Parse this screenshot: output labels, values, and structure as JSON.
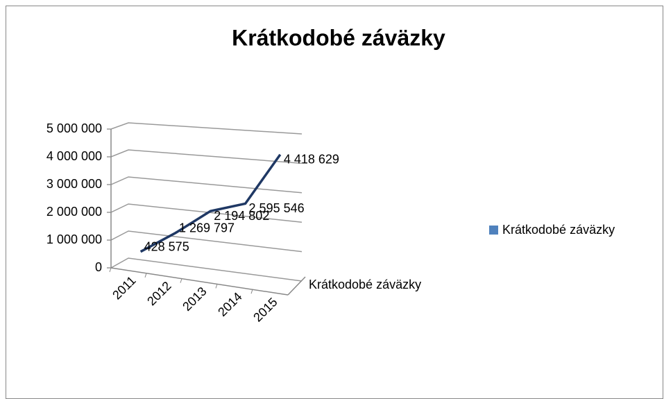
{
  "chart_data": {
    "type": "line",
    "title": "Krátkodobé záväzky",
    "categories": [
      "2011",
      "2012",
      "2013",
      "2014",
      "2015"
    ],
    "series": [
      {
        "name": "Krátkodobé záväzky",
        "color": "#1f3864",
        "values": [
          428575,
          1269797,
          2194802,
          2595546,
          4418629
        ],
        "value_labels": [
          "428 575",
          "1 269 797",
          "2 194 802",
          "2 595 546",
          "4 418 629"
        ]
      }
    ],
    "ylim": [
      0,
      5000000
    ],
    "yticks": [
      0,
      {
        "value": 1000000,
        "label": "1 000 000"
      },
      {
        "value": 2000000,
        "label": "2 000 000"
      },
      {
        "value": 3000000,
        "label": "3 000 000"
      },
      {
        "value": 4000000,
        "label": "4 000 000"
      },
      {
        "value": 5000000,
        "label": "5 000 000"
      }
    ],
    "grid": true,
    "legend": "right",
    "legend_color": "#4f81bd"
  }
}
